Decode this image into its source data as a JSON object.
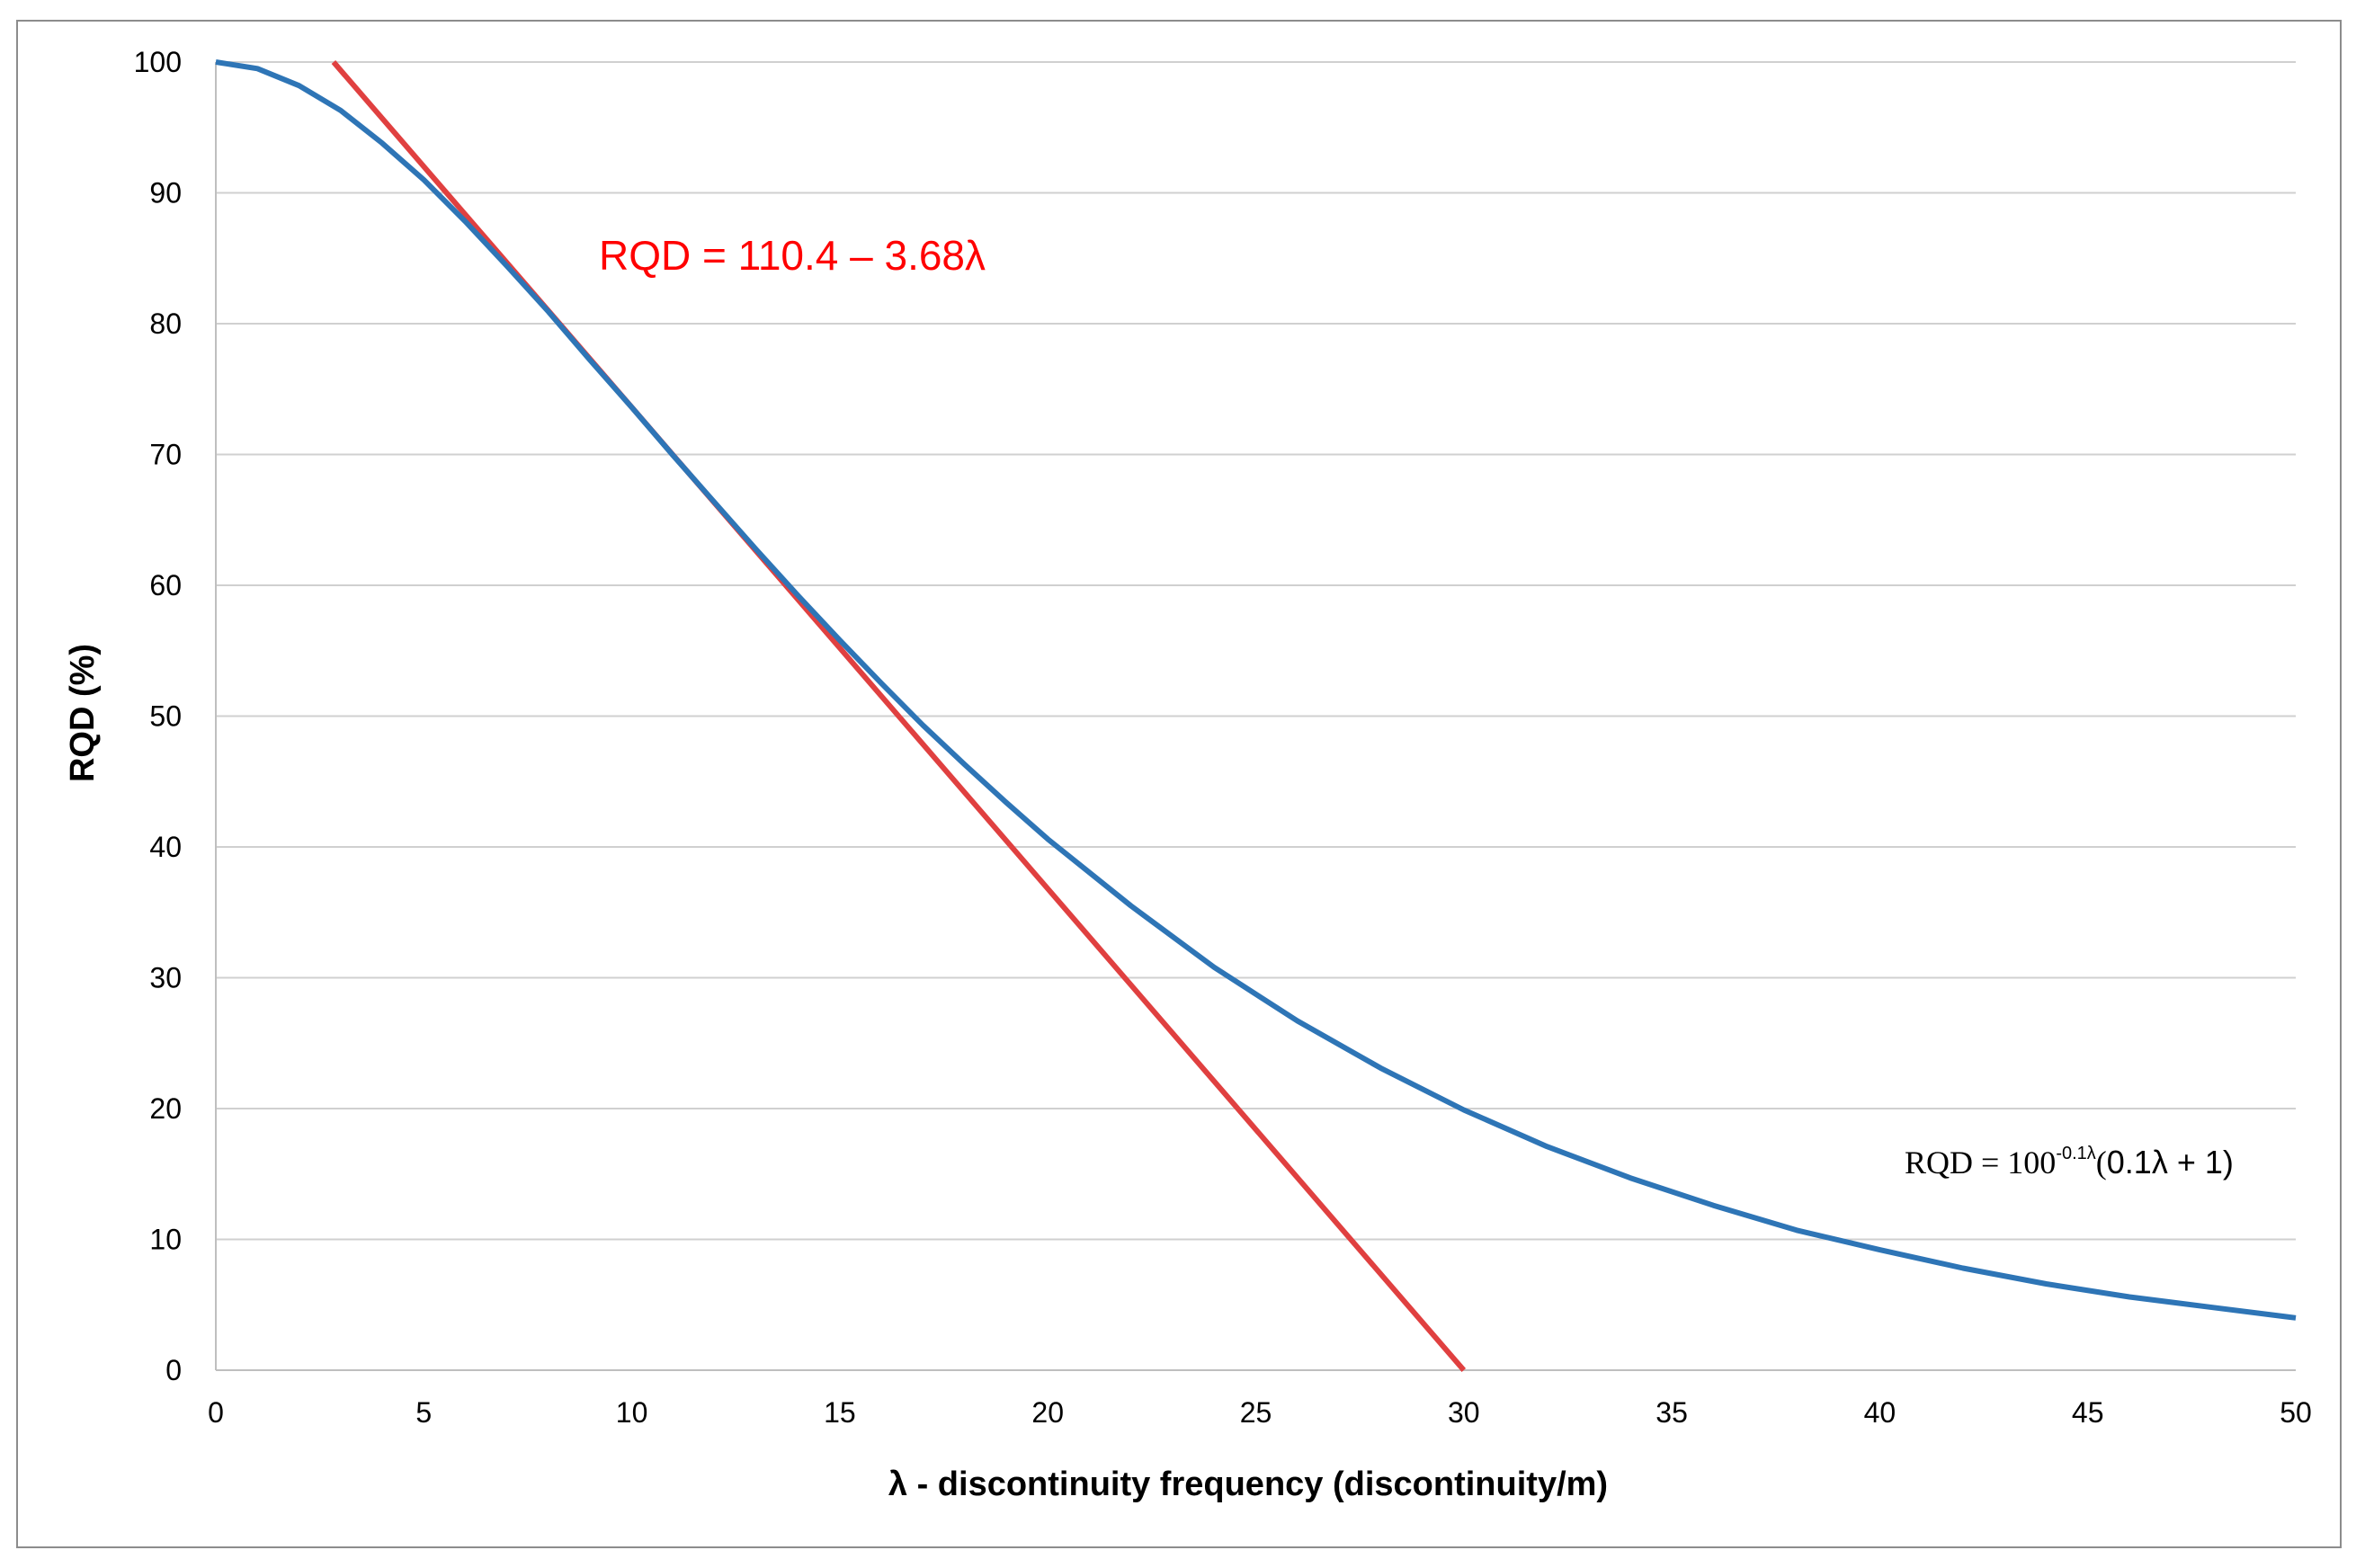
{
  "chart_data": {
    "type": "line",
    "xlabel": "λ - discontinuity frequency (discontinuity/m)",
    "ylabel": "RQD (%)",
    "xlim": [
      0,
      50
    ],
    "ylim": [
      0,
      100
    ],
    "x_ticks": [
      "0",
      "5",
      "10",
      "15",
      "20",
      "25",
      "30",
      "35",
      "40",
      "45",
      "50"
    ],
    "y_ticks": [
      "0",
      "10",
      "20",
      "30",
      "40",
      "50",
      "60",
      "70",
      "80",
      "90",
      "100"
    ],
    "grid": "horizontal",
    "series": [
      {
        "color": "#2e75b6",
        "x": [
          0,
          1,
          2,
          3,
          4,
          5,
          6,
          7,
          8,
          9,
          10,
          11,
          12,
          13,
          14,
          15,
          16,
          17,
          18,
          19,
          20,
          22,
          24,
          26,
          28,
          30,
          32,
          34,
          36,
          38,
          40,
          42,
          44,
          46,
          48,
          50
        ],
        "y": [
          100,
          99.5,
          98.2,
          96.3,
          93.8,
          91.0,
          87.8,
          84.4,
          80.9,
          77.2,
          73.6,
          69.9,
          66.3,
          62.7,
          59.2,
          55.8,
          52.5,
          49.3,
          46.3,
          43.4,
          40.6,
          35.5,
          30.8,
          26.7,
          23.1,
          19.9,
          17.1,
          14.7,
          12.6,
          10.7,
          9.2,
          7.8,
          6.6,
          5.6,
          4.8,
          4.0
        ]
      },
      {
        "color": "#e04040",
        "x": [
          2.83,
          30.0
        ],
        "y": [
          100,
          0
        ]
      }
    ],
    "annotations": {
      "linear": {
        "text": "RQD = 110.4 – 3.68λ",
        "color": "#ff0000"
      },
      "exponential": {
        "prefix": "RQD = 100",
        "exponent": "-0.1λ",
        "suffix_open": "(",
        "suffix_body": "0.1λ + 1)"
      }
    }
  }
}
